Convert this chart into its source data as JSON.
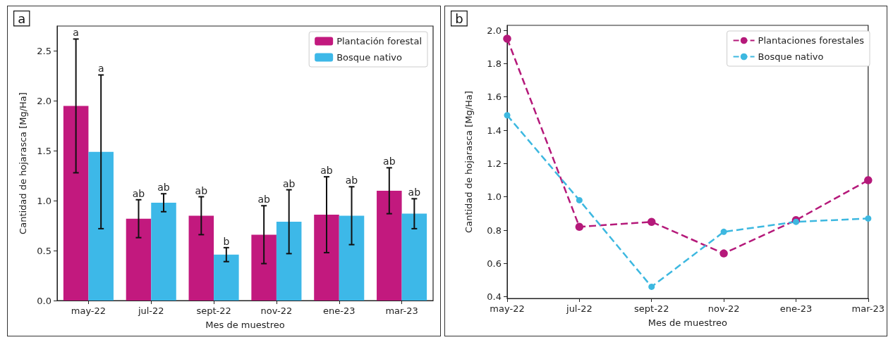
{
  "chart_data": [
    {
      "type": "bar",
      "annotations": [
        "a",
        "a",
        "a",
        "ab",
        "ab",
        "ab",
        "b",
        "ab",
        "ab",
        "ab",
        "ab",
        "ab",
        "ab"
      ],
      "xlabel": "Mes de muestreo",
      "ylabel": "Cantidad de hojarasca [Mg/Ha]",
      "categories": [
        "may-22",
        "jul-22",
        "sept-22",
        "nov-22",
        "ene-23",
        "mar-23"
      ],
      "series": [
        {
          "name": "Plantación forestal",
          "color": "#c2197e",
          "values": [
            1.95,
            0.82,
            0.85,
            0.66,
            0.86,
            1.1
          ],
          "errors": [
            [
              1.28,
              2.62
            ],
            [
              0.63,
              1.01
            ],
            [
              0.66,
              1.04
            ],
            [
              0.37,
              0.95
            ],
            [
              0.48,
              1.24
            ],
            [
              0.87,
              1.33
            ]
          ]
        },
        {
          "name": "Bosque nativo",
          "color": "#3db8e8",
          "values": [
            1.49,
            0.98,
            0.46,
            0.79,
            0.85,
            0.87
          ],
          "errors": [
            [
              0.72,
              2.26
            ],
            [
              0.89,
              1.07
            ],
            [
              0.39,
              0.53
            ],
            [
              0.47,
              1.11
            ],
            [
              0.56,
              1.14
            ],
            [
              0.72,
              1.02
            ]
          ]
        }
      ],
      "ylim": [
        0,
        2.75
      ],
      "yticks": [
        {
          "value": 0,
          "label": "0.0"
        },
        0.5,
        {
          "value": 1,
          "label": "1.0"
        },
        1.5,
        {
          "value": 2,
          "label": "2.0"
        },
        2.5
      ],
      "grid": false,
      "legend": "top right"
    },
    {
      "type": "line",
      "annotations": [
        "b"
      ],
      "xlabel": "Mes de muestreo",
      "ylabel": "Cantidad de hojarasca [Mg/Ha]",
      "categories": [
        "may-22",
        "jul-22",
        "sept-22",
        "nov-22",
        "ene-23",
        "mar-23"
      ],
      "series": [
        {
          "name": "Plantaciones forestales",
          "color": "#b5197a",
          "values": [
            1.95,
            0.82,
            0.85,
            0.66,
            0.86,
            1.1
          ]
        },
        {
          "name": "Bosque nativo",
          "color": "#3db8e0",
          "values": [
            1.49,
            0.98,
            0.46,
            0.79,
            0.85,
            0.87
          ]
        }
      ],
      "ylim": [
        0.39,
        2.03
      ],
      "yticks": [
        0.4,
        0.6,
        0.8,
        {
          "value": 1,
          "label": "1.0"
        },
        1.2,
        1.4,
        1.6,
        1.8,
        {
          "value": 2,
          "label": "2.0"
        }
      ],
      "grid": false,
      "legend": "top right",
      "marker": "circle",
      "line_style": "dashed"
    }
  ]
}
